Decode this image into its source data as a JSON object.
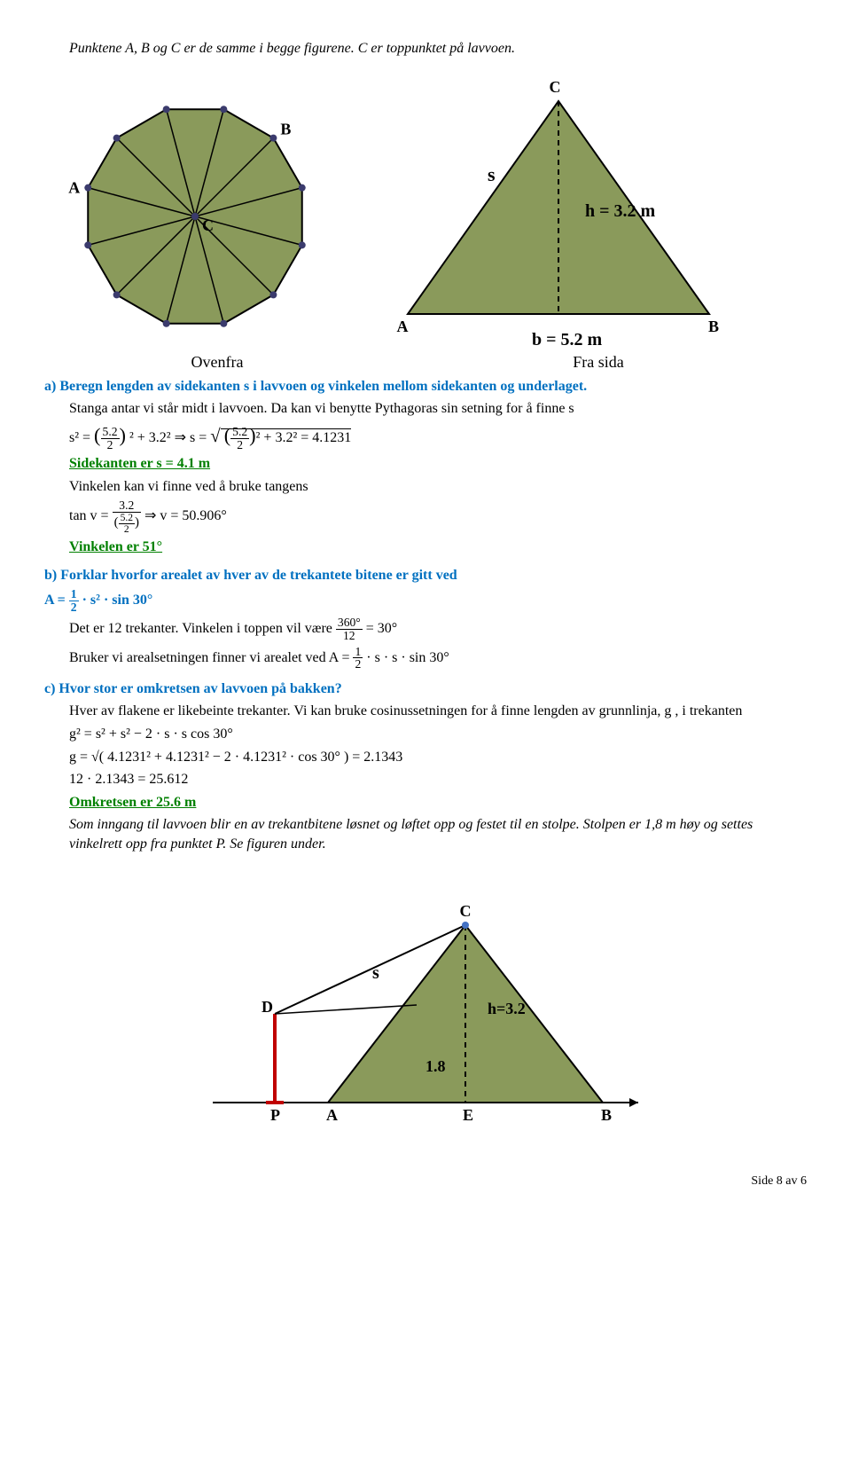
{
  "top_note": "Punktene A, B og C er de samme i begge figurene. C er toppunktet på lavvoen.",
  "fig1": {
    "vertex_labels": [
      "A",
      "B",
      "C"
    ],
    "fill": "#8a9a5b",
    "stroke": "#000000",
    "point_fill": "#3b3b6d"
  },
  "fig2": {
    "labels": {
      "A": "A",
      "B": "B",
      "C": "C",
      "s": "s",
      "h": "h = 3.2 m",
      "b": "b = 5.2 m"
    },
    "fill": "#8a9a5b",
    "stroke": "#000000",
    "dash_color": "#000000"
  },
  "captions": {
    "left": "Ovenfra",
    "right": "Fra sida"
  },
  "a": {
    "prompt": "a) Beregn lengden av sidekanten s i lavvoen og vinkelen mellom sidekanten og underlaget.",
    "line1": "Stanga antar vi står midt i lavvoen. Da kan vi benytte Pythagoras sin setning for å finne s",
    "eq1_lhs": "s² = ",
    "eq1_frac_num": "5.2",
    "eq1_frac_den": "2",
    "eq1_mid1": "² + 3.2²  ⇒  s = ",
    "eq1_mid2": "² + 3.2²  = 4.1231",
    "ans1": "Sidekanten er s = 4.1 m",
    "line2": "Vinkelen kan vi finne ved å bruke tangens",
    "eq2_lhs": "tan v = ",
    "eq2_num": "3.2",
    "eq2_den_num": "5.2",
    "eq2_den_den": "2",
    "eq2_rhs": "  ⇒  v = 50.906°",
    "ans2": "Vinkelen er 51°"
  },
  "b": {
    "prompt": "b) Forklar hvorfor arealet av hver av de trekantete bitene er gitt ved",
    "prompt_eq": "A = ",
    "prompt_frac_num": "1",
    "prompt_frac_den": "2",
    "prompt_eq2": " · s² · sin 30°",
    "line1": "Det er 12 trekanter. Vinkelen i toppen vil være ",
    "frac360_num": "360°",
    "frac360_den": "12",
    "line1b": " = 30°",
    "line2": "Bruker vi arealsetningen finner vi arealet ved A = ",
    "line2b": " · s · s · sin 30°"
  },
  "c": {
    "prompt": "c) Hvor stor er omkretsen av lavvoen på bakken?",
    "line1": "Hver av flakene er likebeinte trekanter. Vi kan bruke cosinussetningen for å finne lengden av grunnlinja, g , i trekanten",
    "eq1": "g² = s² + s² − 2 · s · s cos 30°",
    "eq2": "g = √( 4.1231² + 4.1231² − 2 · 4.1231² · cos 30° ) = 2.1343",
    "eq3": "12 · 2.1343 = 25.612",
    "ans": "Omkretsen er 25.6 m",
    "note": "Som inngang til lavvoen blir en av trekantbitene løsnet og løftet opp og festet til en stolpe. Stolpen er 1,8 m høy og settes vinkelrett opp fra punktet P. Se figuren under."
  },
  "fig3": {
    "labels": {
      "P": "P",
      "A": "A",
      "E": "E",
      "B": "B",
      "C": "C",
      "D": "D",
      "s": "s",
      "h": "h=3.2",
      "v": "1.8"
    },
    "fill": "#8a9a5b",
    "stroke": "#000000",
    "red": "#c00000",
    "blue": "#4472c4"
  },
  "footer": "Side 8 av 6"
}
